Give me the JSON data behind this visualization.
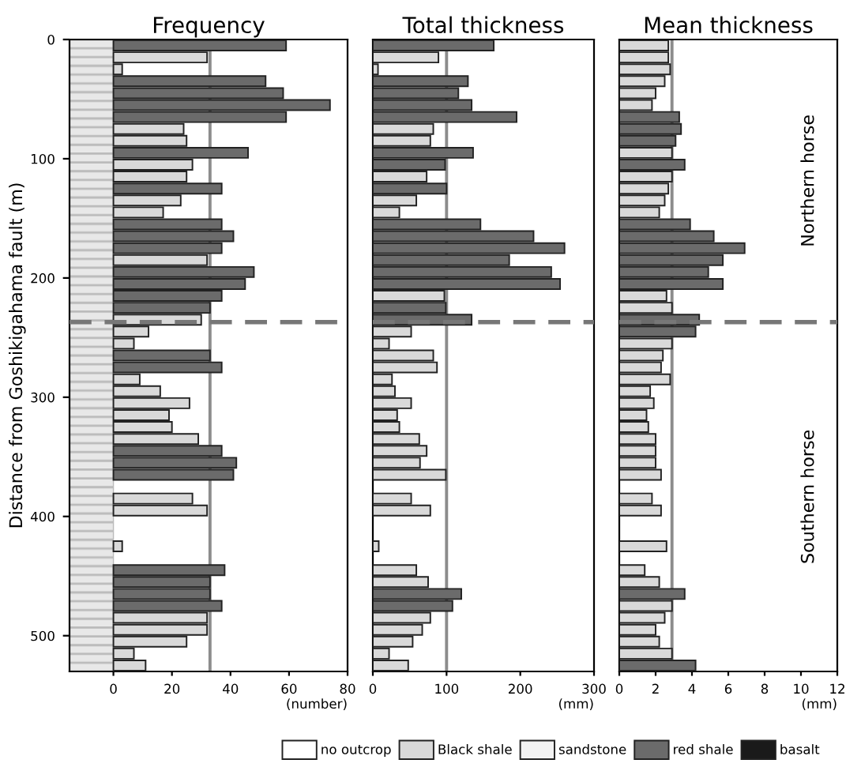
{
  "chart_data": [
    {
      "type": "bar",
      "orientation": "horizontal",
      "title": "Frequency",
      "xlabel": "(number)",
      "ylabel": "Distance from Goshikigahama fault (m)",
      "x": [
        5,
        15,
        25,
        35,
        45,
        55,
        65,
        75,
        85,
        95,
        105,
        115,
        125,
        135,
        145,
        155,
        165,
        175,
        185,
        195,
        205,
        215,
        225,
        235,
        245,
        255,
        265,
        275,
        285,
        295,
        305,
        315,
        325,
        335,
        345,
        355,
        365,
        385,
        395,
        425,
        445,
        455,
        465,
        475,
        485,
        495,
        505,
        515,
        525
      ],
      "series": [
        {
          "name": "no outcrop",
          "color": "#ffffff",
          "values": [
            null,
            null,
            null,
            null,
            null,
            null,
            null,
            null,
            null,
            null,
            null,
            null,
            null,
            null,
            null,
            null,
            null,
            null,
            null,
            null,
            null,
            null,
            null,
            null,
            null,
            null,
            null,
            null,
            null,
            null,
            null,
            null,
            null,
            null,
            null,
            null,
            null,
            null,
            null,
            null,
            null,
            null,
            null,
            null,
            null,
            null,
            null,
            null,
            null
          ]
        },
        {
          "name": "Black shale",
          "color": "#d9d9d9",
          "values": [
            null,
            32,
            3,
            null,
            null,
            null,
            null,
            24,
            25,
            null,
            27,
            25,
            null,
            23,
            17,
            null,
            null,
            null,
            32,
            null,
            null,
            null,
            null,
            30,
            12,
            7,
            null,
            null,
            9,
            16,
            26,
            19,
            20,
            29,
            null,
            null,
            null,
            27,
            32,
            3,
            null,
            null,
            null,
            null,
            32,
            32,
            25,
            7,
            11
          ]
        },
        {
          "name": "sandstone",
          "color": "#f2f2f2",
          "values": [
            null,
            null,
            null,
            null,
            null,
            null,
            null,
            null,
            null,
            null,
            null,
            null,
            null,
            null,
            null,
            null,
            null,
            null,
            null,
            null,
            null,
            null,
            null,
            null,
            null,
            null,
            null,
            null,
            null,
            null,
            null,
            null,
            null,
            null,
            null,
            null,
            null,
            null,
            null,
            null,
            null,
            null,
            null,
            null,
            null,
            null,
            null,
            null,
            null
          ]
        },
        {
          "name": "red shale",
          "color": "#6b6b6b",
          "values": [
            59,
            null,
            null,
            52,
            58,
            74,
            59,
            null,
            null,
            46,
            null,
            null,
            37,
            null,
            null,
            37,
            41,
            37,
            null,
            48,
            45,
            37,
            33,
            null,
            null,
            null,
            33,
            37,
            null,
            null,
            null,
            null,
            null,
            null,
            37,
            42,
            41,
            null,
            null,
            null,
            38,
            33,
            33,
            37,
            null,
            null,
            null,
            null,
            null
          ]
        },
        {
          "name": "basalt",
          "color": "#1a1a1a",
          "values": [
            null,
            null,
            null,
            null,
            null,
            null,
            null,
            null,
            null,
            null,
            null,
            null,
            null,
            null,
            null,
            null,
            null,
            null,
            null,
            null,
            null,
            null,
            null,
            null,
            null,
            null,
            null,
            null,
            null,
            null,
            null,
            null,
            null,
            null,
            null,
            null,
            null,
            null,
            null,
            null,
            null,
            null,
            null,
            null,
            null,
            null,
            null,
            null,
            null
          ]
        }
      ],
      "xlim": [
        -15,
        80
      ],
      "xticks": [
        0,
        20,
        40,
        60,
        80
      ],
      "ylim": [
        530,
        0
      ],
      "yticks": [
        0,
        100,
        200,
        300,
        400,
        500
      ],
      "ref_lines": [
        {
          "axis": "x",
          "value": 33,
          "color": "#8c8c8c",
          "line_style": "solid"
        },
        {
          "axis": "y",
          "value": 237,
          "color": "#777777",
          "line_style": "dashed"
        }
      ],
      "legend": "bottom",
      "grid": false
    },
    {
      "type": "bar",
      "orientation": "horizontal",
      "title": "Total thickness",
      "xlabel": "(mm)",
      "x": [
        5,
        15,
        25,
        35,
        45,
        55,
        65,
        75,
        85,
        95,
        105,
        115,
        125,
        135,
        145,
        155,
        165,
        175,
        185,
        195,
        205,
        215,
        225,
        235,
        245,
        255,
        265,
        275,
        285,
        295,
        305,
        315,
        325,
        335,
        345,
        355,
        365,
        385,
        395,
        425,
        445,
        455,
        465,
        475,
        485,
        495,
        505,
        515,
        525
      ],
      "series": [
        {
          "color": "#d9d9d9",
          "values": [
            null,
            89,
            7,
            null,
            null,
            null,
            null,
            82,
            78,
            null,
            null,
            73,
            null,
            59,
            36,
            null,
            null,
            null,
            null,
            null,
            null,
            97,
            null,
            null,
            52,
            22,
            82,
            87,
            26,
            30,
            52,
            33,
            36,
            63,
            73,
            64,
            99,
            52,
            78,
            8,
            59,
            75,
            null,
            null,
            78,
            67,
            54,
            22,
            48
          ]
        },
        {
          "color": "#6b6b6b",
          "values": [
            164,
            null,
            null,
            129,
            116,
            134,
            195,
            null,
            null,
            136,
            98,
            null,
            100,
            null,
            null,
            146,
            218,
            260,
            185,
            242,
            254,
            null,
            99,
            134,
            null,
            null,
            null,
            null,
            null,
            null,
            null,
            null,
            null,
            null,
            null,
            null,
            null,
            null,
            null,
            null,
            null,
            null,
            120,
            108,
            null,
            null,
            null,
            null,
            null
          ]
        }
      ],
      "xlim": [
        0,
        300
      ],
      "xticks": [
        0,
        100,
        200,
        300
      ],
      "ylim": [
        530,
        0
      ],
      "tick_labels": "x",
      "ref_lines": [
        {
          "axis": "x",
          "value": 100,
          "color": "#8c8c8c",
          "line_style": "solid"
        },
        {
          "axis": "y",
          "value": 237,
          "color": "#777777",
          "line_style": "dashed"
        }
      ],
      "grid": false
    },
    {
      "type": "bar",
      "orientation": "horizontal",
      "title": "Mean thickness",
      "xlabel": "(mm)",
      "x": [
        5,
        15,
        25,
        35,
        45,
        55,
        65,
        75,
        85,
        95,
        105,
        115,
        125,
        135,
        145,
        155,
        165,
        175,
        185,
        195,
        205,
        215,
        225,
        235,
        245,
        255,
        265,
        275,
        285,
        295,
        305,
        315,
        325,
        335,
        345,
        355,
        365,
        385,
        395,
        425,
        445,
        455,
        465,
        475,
        485,
        495,
        505,
        515,
        525
      ],
      "series": [
        {
          "color": "#d9d9d9",
          "values": [
            2.7,
            2.7,
            2.8,
            2.5,
            2.0,
            1.8,
            null,
            null,
            null,
            2.9,
            null,
            2.9,
            2.7,
            2.5,
            2.2,
            null,
            null,
            null,
            null,
            null,
            null,
            2.6,
            2.9,
            null,
            null,
            2.9,
            2.4,
            2.3,
            2.8,
            1.7,
            1.9,
            1.5,
            1.6,
            2.0,
            2.0,
            2.0,
            2.3,
            1.8,
            2.3,
            2.6,
            1.4,
            2.2,
            null,
            2.9,
            2.5,
            2.0,
            2.2,
            2.9,
            null
          ]
        },
        {
          "color": "#6b6b6b",
          "values": [
            null,
            null,
            null,
            null,
            null,
            null,
            3.3,
            3.4,
            3.1,
            null,
            3.6,
            null,
            null,
            null,
            null,
            3.9,
            5.2,
            6.9,
            5.7,
            4.9,
            5.7,
            null,
            null,
            4.4,
            4.2,
            null,
            null,
            null,
            null,
            null,
            null,
            null,
            null,
            null,
            null,
            null,
            null,
            null,
            null,
            null,
            null,
            null,
            3.6,
            null,
            null,
            null,
            null,
            null,
            4.2
          ]
        }
      ],
      "xlim": [
        0,
        12
      ],
      "xticks": [
        0,
        2,
        4,
        6,
        8,
        10,
        12
      ],
      "ylim": [
        530,
        0
      ],
      "tick_labels": "x",
      "ref_lines": [
        {
          "axis": "x",
          "value": 2.9,
          "color": "#8c8c8c",
          "line_style": "solid"
        },
        {
          "axis": "y",
          "value": 237,
          "color": "#777777",
          "line_style": "dashed"
        }
      ],
      "annotations": [
        "Northern horse",
        "Southern horse"
      ],
      "grid": false
    }
  ]
}
